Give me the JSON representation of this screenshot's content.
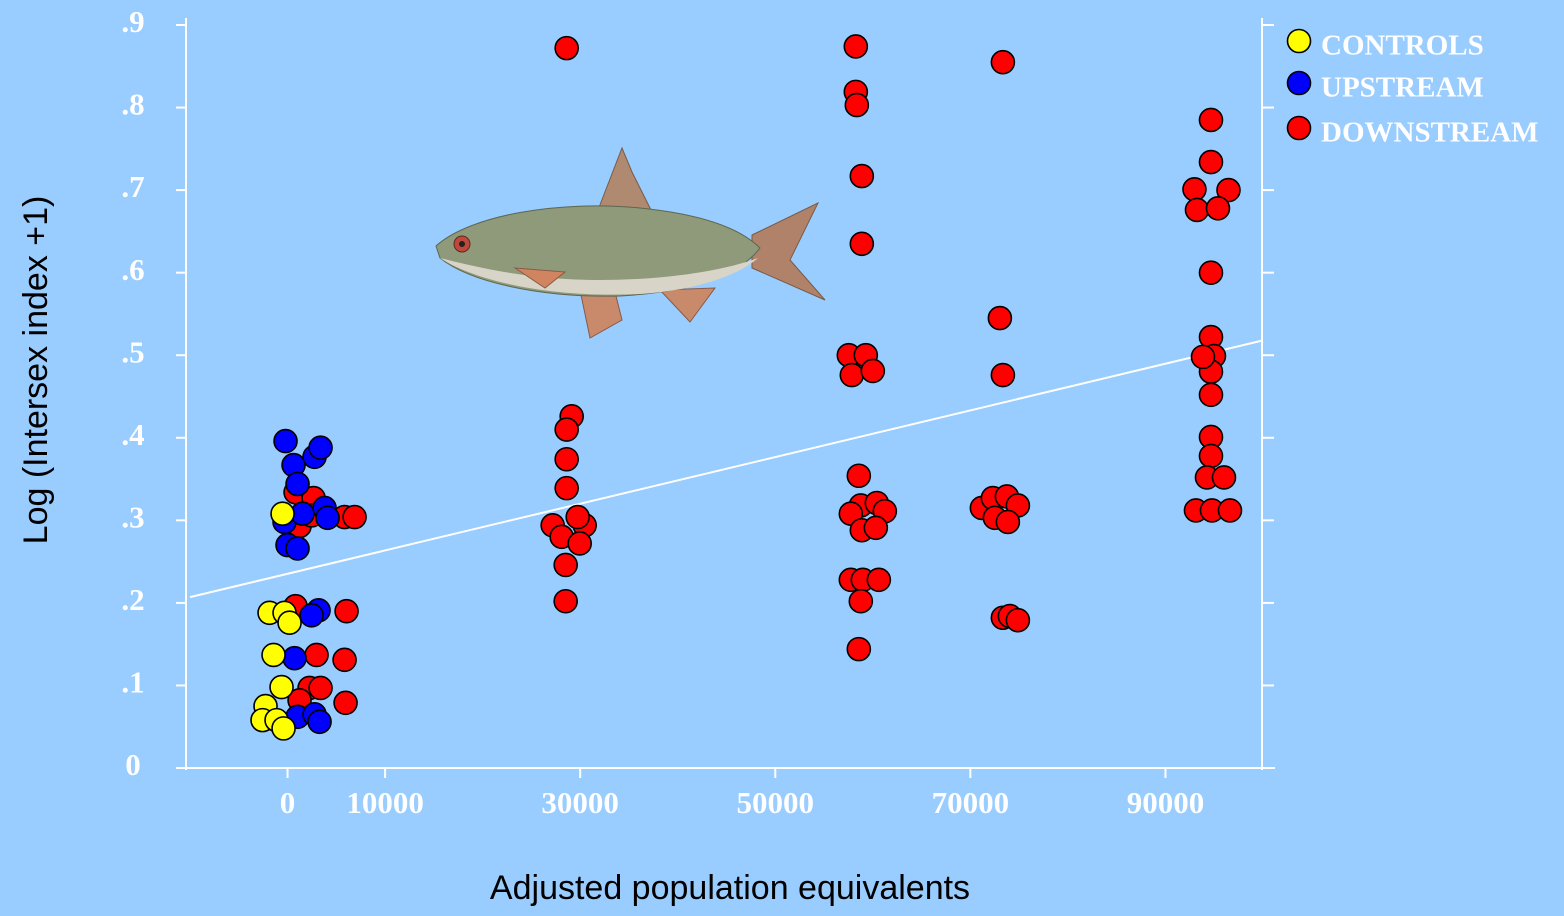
{
  "chart_data": {
    "type": "scatter",
    "xlabel": "Adjusted population equivalents",
    "ylabel": "Log (Intersex index +1)",
    "xlim": [
      -10000,
      100000
    ],
    "ylim": [
      0,
      0.9
    ],
    "xticks": [
      0,
      10000,
      30000,
      50000,
      70000,
      90000
    ],
    "yticks": [
      0,
      {
        "value": 0.1,
        "label": ".1"
      },
      {
        "value": 0.2,
        "label": ".2"
      },
      {
        "value": 0.3,
        "label": ".3"
      },
      {
        "value": 0.4,
        "label": ".4"
      },
      {
        "value": 0.5,
        "label": ".5"
      },
      {
        "value": 0.6,
        "label": ".6"
      },
      {
        "value": 0.7,
        "label": ".7"
      },
      {
        "value": 0.8,
        "label": ".8"
      },
      {
        "value": 0.9,
        "label": ".9"
      }
    ],
    "legend_position": "upper right",
    "series": [
      {
        "name": "CONTROLS",
        "color": "#ffff00",
        "x": [
          -1846,
          -308,
          205,
          -1436,
          -615,
          -2256,
          -2564,
          -1128,
          -410,
          -513
        ],
        "values": [
          0.188,
          0.188,
          0.176,
          0.137,
          0.098,
          0.075,
          0.058,
          0.058,
          0.048,
          0.308
        ]
      },
      {
        "name": "UPSTREAM",
        "color": "#0000ff",
        "x": [
          -205,
          615,
          2769,
          3385,
          1026,
          -308,
          1538,
          3795,
          4103,
          0,
          1026,
          3179,
          2462,
          718,
          1026,
          2769,
          3282
        ],
        "values": [
          0.396,
          0.367,
          0.377,
          0.388,
          0.344,
          0.298,
          0.308,
          0.315,
          0.303,
          0.27,
          0.266,
          0.191,
          0.185,
          0.133,
          0.062,
          0.065,
          0.056
        ]
      },
      {
        "name": "DOWNSTREAM",
        "color": "#ff0000",
        "x": [
          821,
          2667,
          1231,
          2462,
          5846,
          6872,
          821,
          6051,
          2974,
          5846,
          2256,
          3385,
          5949,
          1231,
          28615,
          29128,
          28615,
          28615,
          28615,
          27179,
          30462,
          29744,
          28103,
          29949,
          28513,
          28513,
          58256,
          58256,
          58359,
          58872,
          58872,
          57538,
          59282,
          57846,
          60000,
          58564,
          58769,
          60410,
          57744,
          61231,
          58872,
          60308,
          57744,
          58974,
          60615,
          58769,
          58564,
          73333,
          73026,
          73333,
          71179,
          72308,
          73744,
          74872,
          72513,
          73846,
          73333,
          74051,
          74872,
          94667,
          94667,
          92974,
          96462,
          93231,
          95385,
          94667,
          94667,
          94974,
          94667,
          94667,
          94667,
          94667,
          94256,
          96000,
          93128,
          94769,
          96615,
          93846
        ],
        "values": [
          0.334,
          0.327,
          0.293,
          0.306,
          0.304,
          0.304,
          0.196,
          0.19,
          0.137,
          0.131,
          0.097,
          0.097,
          0.079,
          0.082,
          0.872,
          0.426,
          0.41,
          0.374,
          0.339,
          0.294,
          0.294,
          0.304,
          0.28,
          0.272,
          0.246,
          0.202,
          0.874,
          0.819,
          0.803,
          0.717,
          0.635,
          0.5,
          0.5,
          0.476,
          0.481,
          0.354,
          0.318,
          0.321,
          0.308,
          0.311,
          0.288,
          0.291,
          0.228,
          0.228,
          0.228,
          0.202,
          0.144,
          0.855,
          0.545,
          0.476,
          0.315,
          0.327,
          0.329,
          0.318,
          0.303,
          0.298,
          0.182,
          0.184,
          0.179,
          0.785,
          0.734,
          0.701,
          0.7,
          0.676,
          0.678,
          0.6,
          0.522,
          0.499,
          0.48,
          0.452,
          0.401,
          0.378,
          0.352,
          0.352,
          0.312,
          0.312,
          0.312,
          0.498
        ]
      }
    ],
    "trendline": {
      "color": "#ffffff",
      "x": [
        -10000,
        100000
      ],
      "y": [
        0.207,
        0.518
      ]
    }
  }
}
